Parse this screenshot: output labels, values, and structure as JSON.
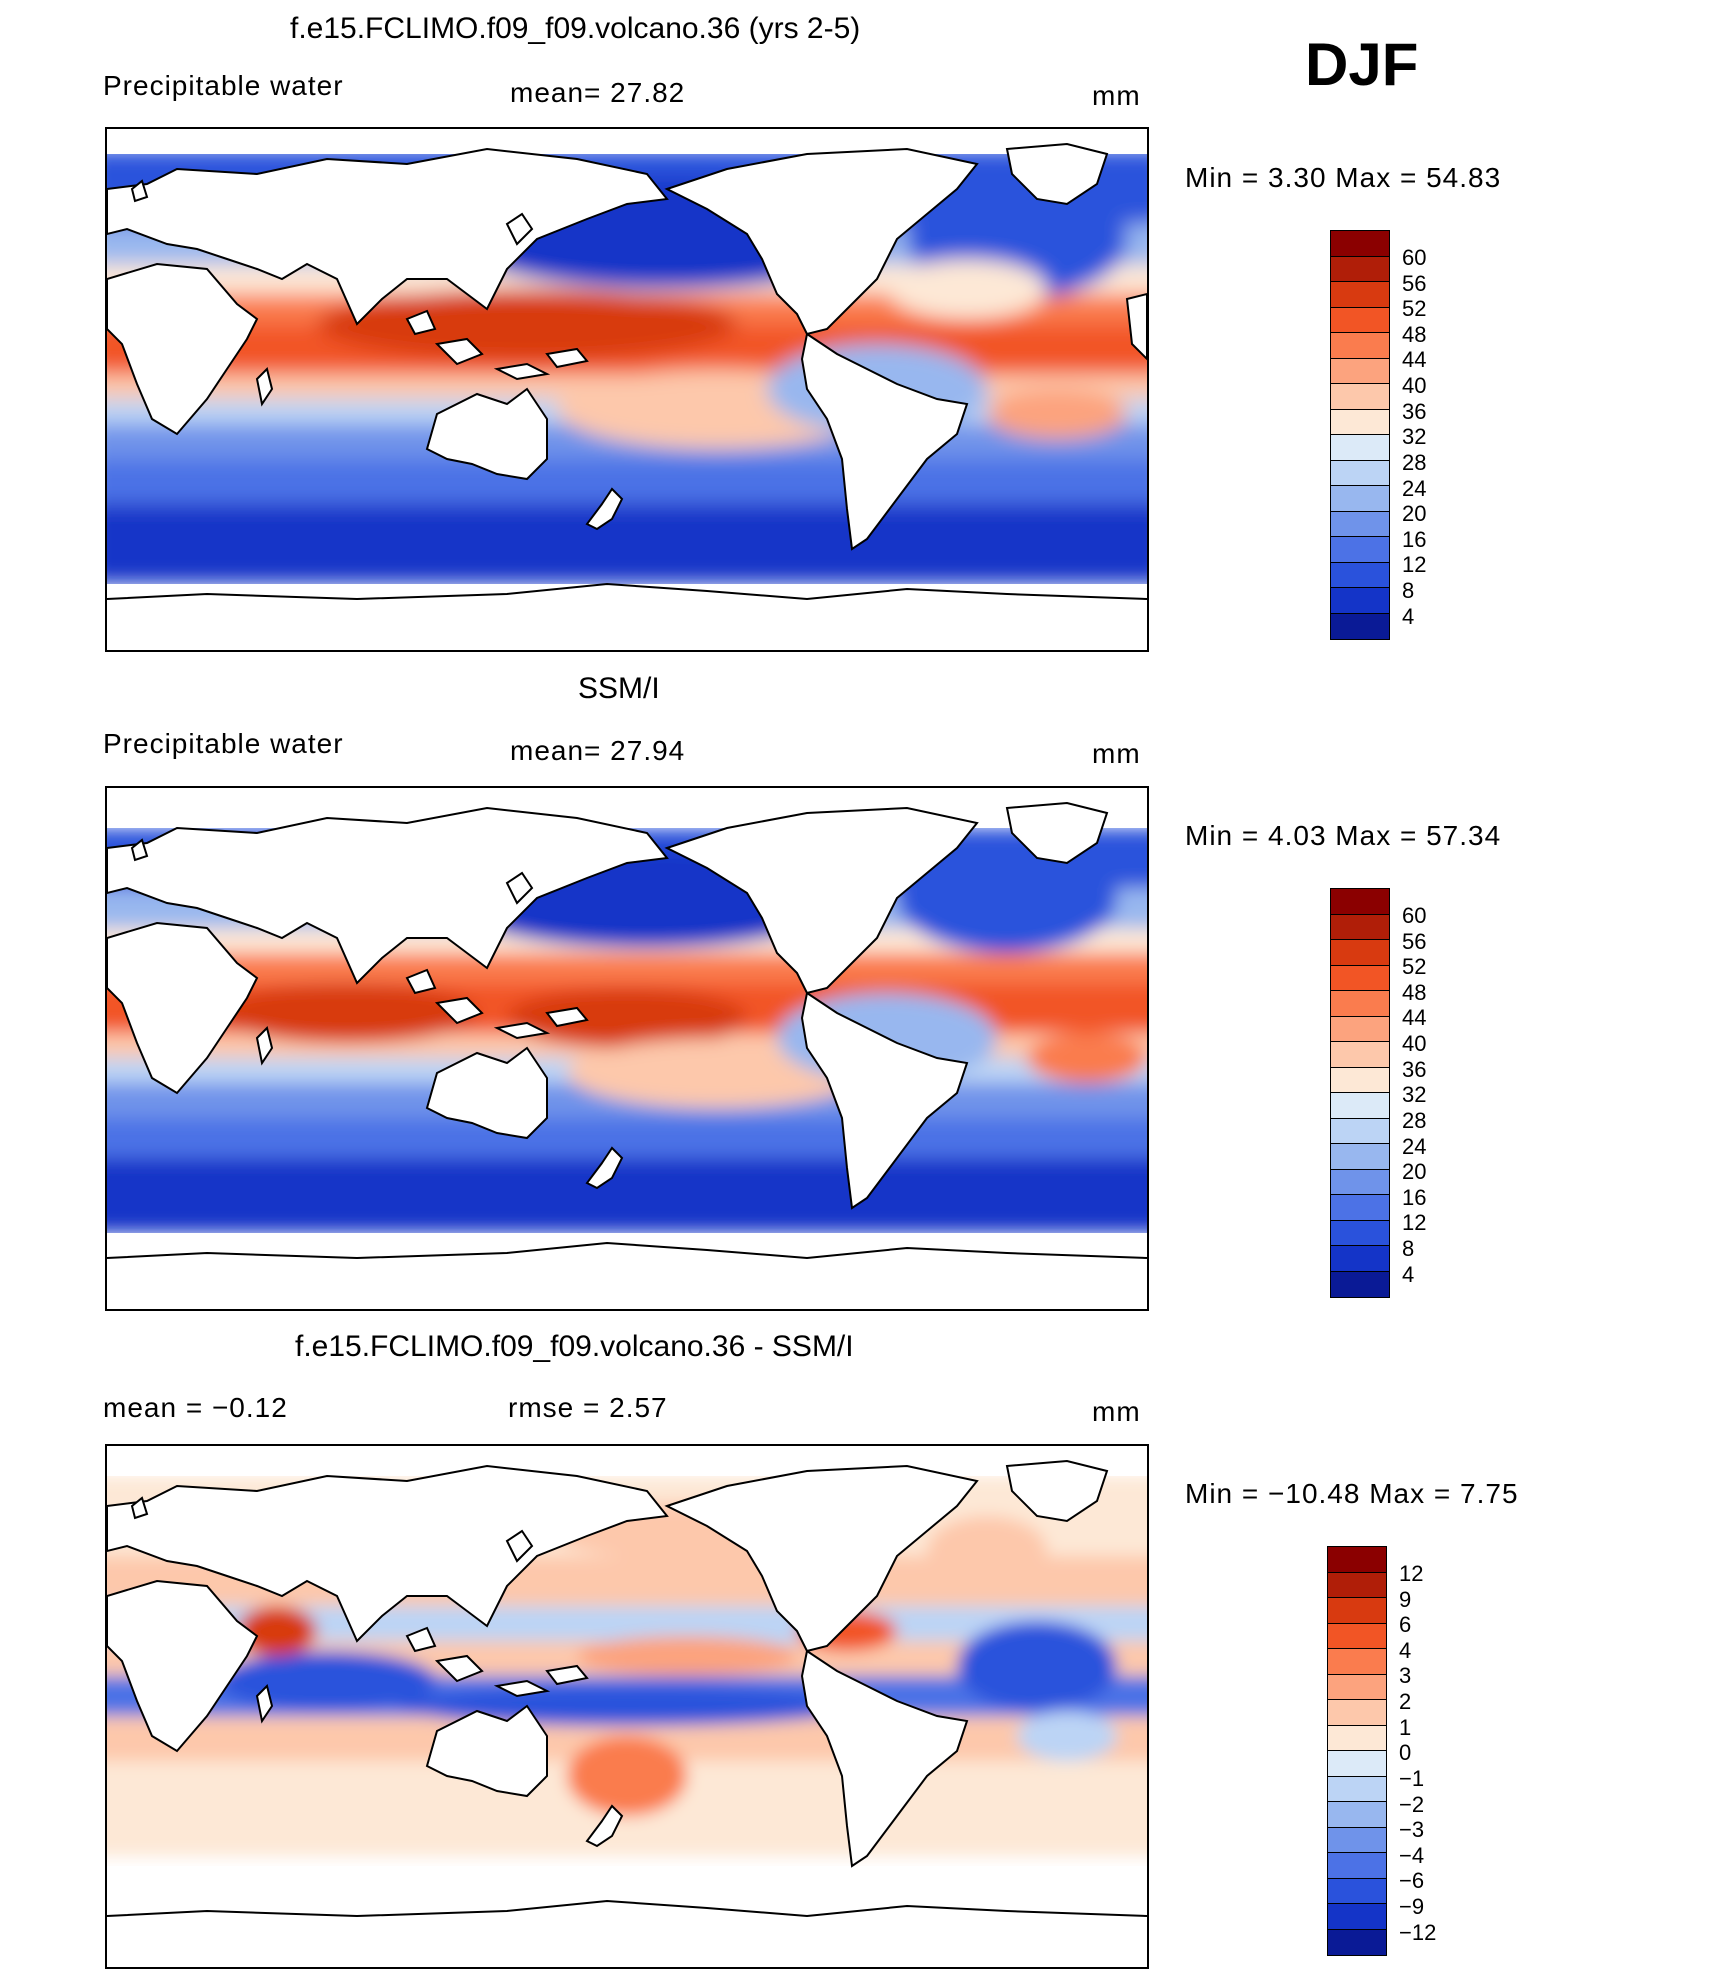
{
  "season": "DJF",
  "panels": [
    {
      "title": "f.e15.FCLIMO.f09_f09.volcano.36 (yrs 2-5)",
      "left_label": "Precipitable water",
      "center_label": "mean=   27.82",
      "units": "mm",
      "minmax": "Min  =     3.30  Max  =    54.83",
      "colorbar_labels": [
        "60",
        "56",
        "52",
        "48",
        "44",
        "40",
        "36",
        "32",
        "28",
        "24",
        "20",
        "16",
        "12",
        "8",
        "4"
      ],
      "colorbar_colors": [
        "#8b0000",
        "#b01e08",
        "#d83a10",
        "#f25525",
        "#fa7c4e",
        "#fca37e",
        "#fdc8ab",
        "#fde8d6",
        "#dceaf8",
        "#bcd4f5",
        "#98b7ef",
        "#6f93ea",
        "#4c72e6",
        "#2a52dc",
        "#1434c8",
        "#0a1a96"
      ]
    },
    {
      "title": "SSM/I",
      "left_label": "Precipitable water",
      "center_label": "mean=   27.94",
      "units": "mm",
      "minmax": "Min  =     4.03  Max  =    57.34",
      "colorbar_labels": [
        "60",
        "56",
        "52",
        "48",
        "44",
        "40",
        "36",
        "32",
        "28",
        "24",
        "20",
        "16",
        "12",
        "8",
        "4"
      ],
      "colorbar_colors": [
        "#8b0000",
        "#b01e08",
        "#d83a10",
        "#f25525",
        "#fa7c4e",
        "#fca37e",
        "#fdc8ab",
        "#fde8d6",
        "#dceaf8",
        "#bcd4f5",
        "#98b7ef",
        "#6f93ea",
        "#4c72e6",
        "#2a52dc",
        "#1434c8",
        "#0a1a96"
      ]
    },
    {
      "title": "f.e15.FCLIMO.f09_f09.volcano.36 - SSM/I",
      "left_label": "mean  =    −0.12",
      "center_label": "rmse  =     2.57",
      "units": "mm",
      "minmax": "Min  = −10.48  Max  =     7.75",
      "colorbar_labels": [
        "12",
        "9",
        "6",
        "4",
        "3",
        "2",
        "1",
        "0",
        "−1",
        "−2",
        "−3",
        "−4",
        "−6",
        "−9",
        "−12"
      ],
      "colorbar_colors": [
        "#8b0000",
        "#b01e08",
        "#d83a10",
        "#f25525",
        "#fa7c4e",
        "#fca37e",
        "#fdc8ab",
        "#fde8d6",
        "#dceaf8",
        "#bcd4f5",
        "#98b7ef",
        "#6f93ea",
        "#4c72e6",
        "#2a52dc",
        "#1434c8",
        "#0a1a96"
      ]
    }
  ]
}
